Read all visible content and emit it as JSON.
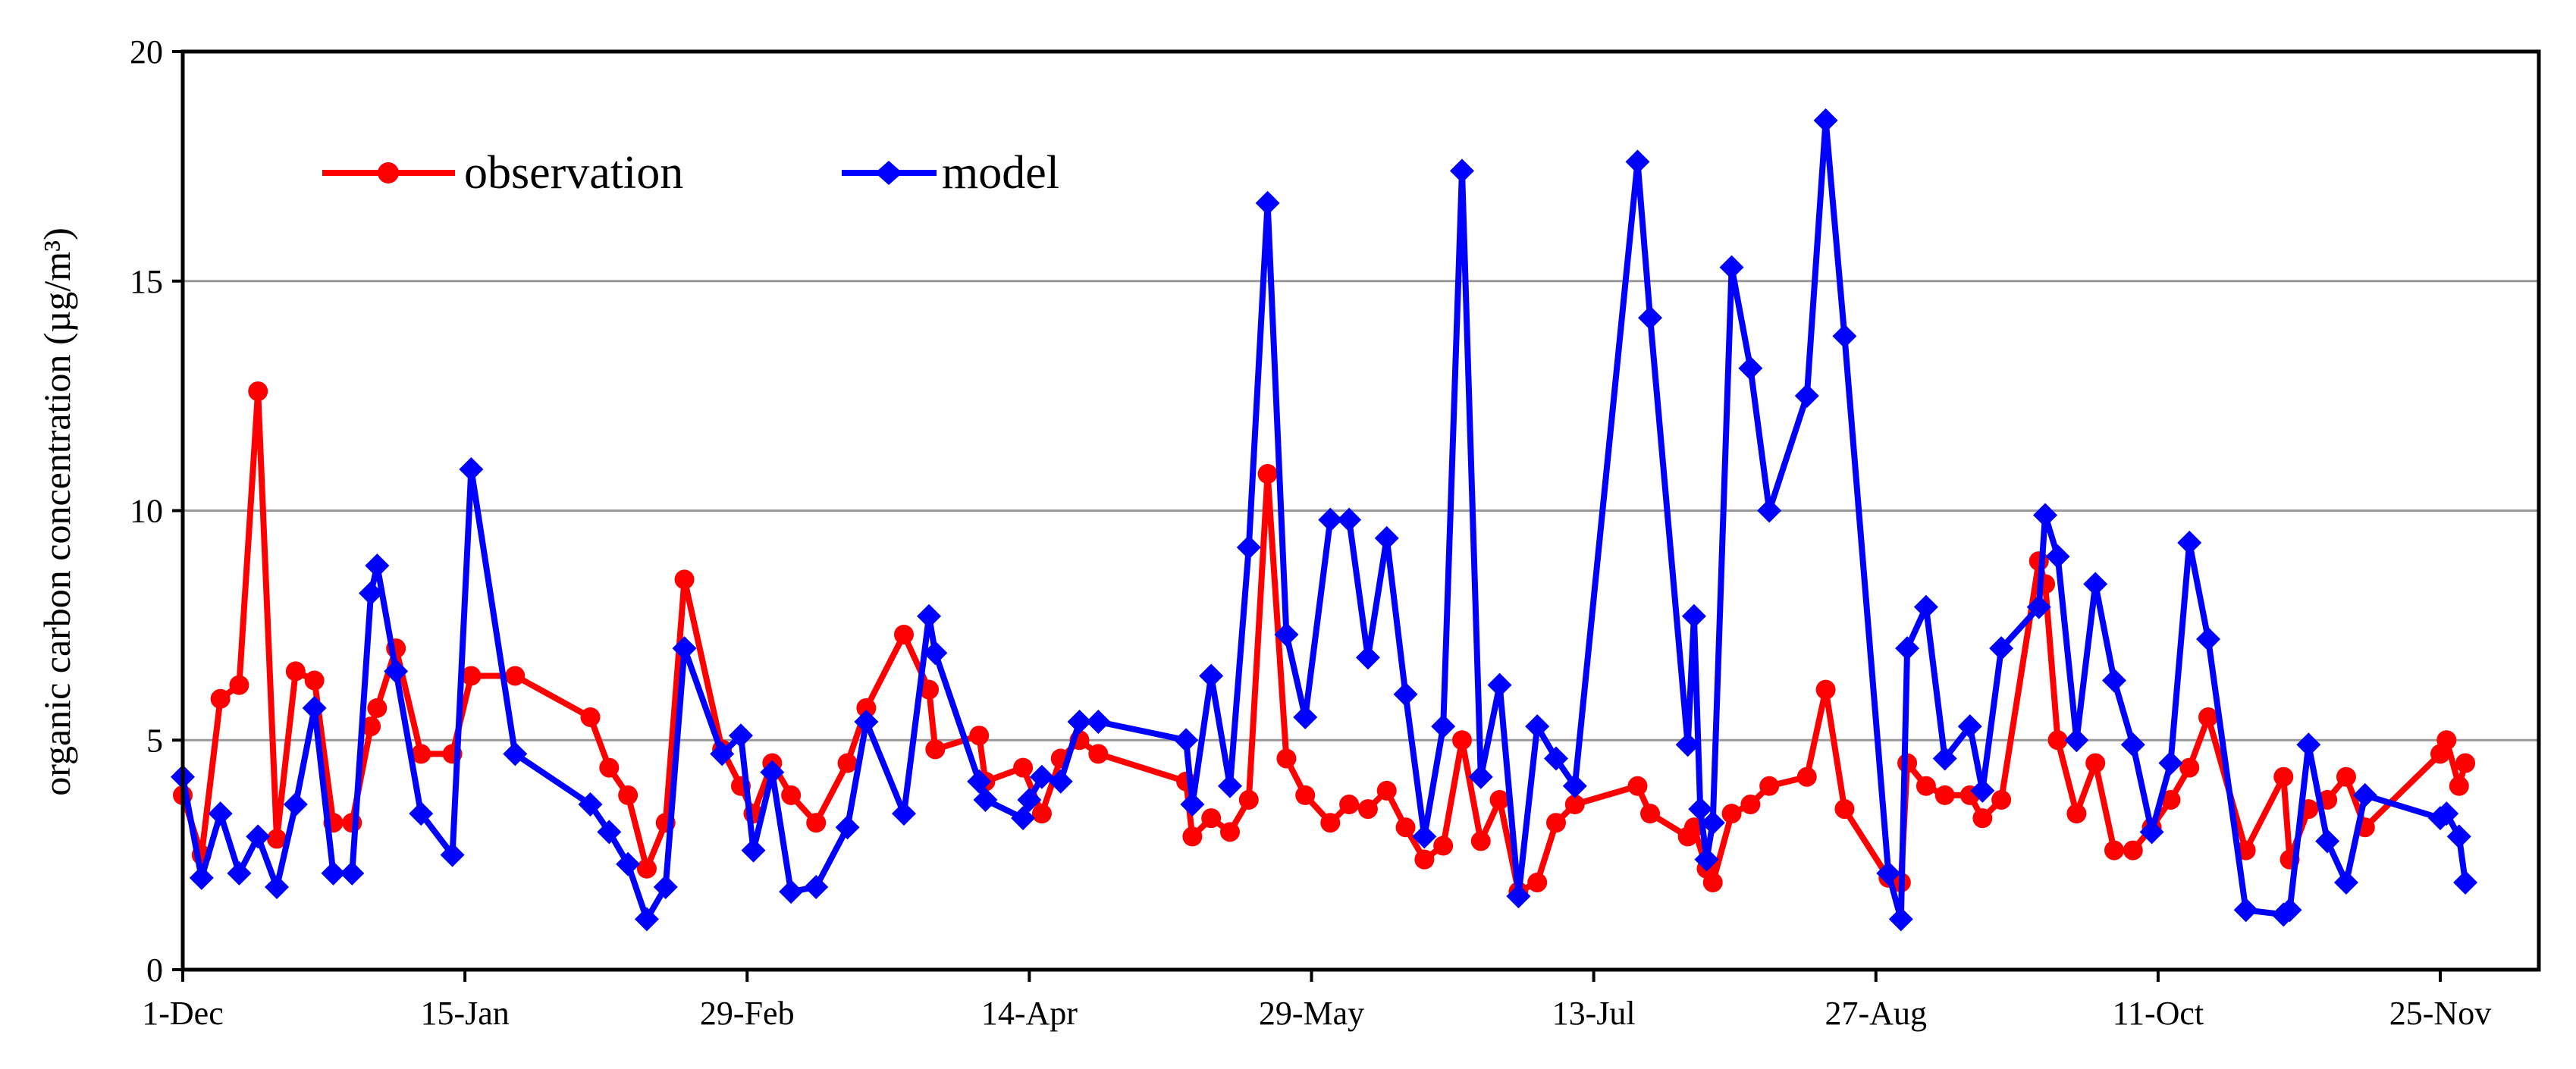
{
  "chart_data": {
    "type": "line",
    "title": "",
    "xlabel": "",
    "ylabel": "organic carbon concentration (µg/m³)",
    "ylim": [
      0,
      20
    ],
    "yticks": [
      0,
      5,
      10,
      15,
      20
    ],
    "xticks": [
      "1-Dec",
      "15-Jan",
      "29-Feb",
      "14-Apr",
      "29-May",
      "13-Jul",
      "27-Aug",
      "11-Oct",
      "25-Nov"
    ],
    "grid": "horizontal",
    "legend": "top-left",
    "series": [
      {
        "name": "observation",
        "color": "#ff0000",
        "marker": "circle",
        "points": [
          [
            "1-Dec",
            3.8
          ],
          [
            "4-Dec",
            2.5
          ],
          [
            "7-Dec",
            5.9
          ],
          [
            "10-Dec",
            6.2
          ],
          [
            "13-Dec",
            12.6
          ],
          [
            "16-Dec",
            2.85
          ],
          [
            "19-Dec",
            6.5
          ],
          [
            "22-Dec",
            6.3
          ],
          [
            "25-Dec",
            3.2
          ],
          [
            "28-Dec",
            3.2
          ],
          [
            "31-Dec",
            5.3
          ],
          [
            "1-Jan",
            5.7
          ],
          [
            "4-Jan",
            7.0
          ],
          [
            "8-Jan",
            4.7
          ],
          [
            "13-Jan",
            4.7
          ],
          [
            "16-Jan",
            6.4
          ],
          [
            "23-Jan",
            6.4
          ],
          [
            "4-Feb",
            5.5
          ],
          [
            "7-Feb",
            4.4
          ],
          [
            "10-Feb",
            3.8
          ],
          [
            "13-Feb",
            2.2
          ],
          [
            "16-Feb",
            3.2
          ],
          [
            "19-Feb",
            8.5
          ],
          [
            "25-Feb",
            4.8
          ],
          [
            "28-Feb",
            4.0
          ],
          [
            "1-Mar",
            3.4
          ],
          [
            "4-Mar",
            4.5
          ],
          [
            "7-Mar",
            3.8
          ],
          [
            "11-Mar",
            3.2
          ],
          [
            "16-Mar",
            4.5
          ],
          [
            "19-Mar",
            5.7
          ],
          [
            "25-Mar",
            7.3
          ],
          [
            "29-Mar",
            6.1
          ],
          [
            "30-Mar",
            4.8
          ],
          [
            "6-Apr",
            5.1
          ],
          [
            "7-Apr",
            4.1
          ],
          [
            "13-Apr",
            4.4
          ],
          [
            "16-Apr",
            3.4
          ],
          [
            "19-Apr",
            4.6
          ],
          [
            "22-Apr",
            5.0
          ],
          [
            "25-Apr",
            4.7
          ],
          [
            "9-May",
            4.1
          ],
          [
            "10-May",
            2.9
          ],
          [
            "13-May",
            3.3
          ],
          [
            "16-May",
            3.0
          ],
          [
            "19-May",
            3.7
          ],
          [
            "22-May",
            10.8
          ],
          [
            "25-May",
            4.6
          ],
          [
            "28-May",
            3.8
          ],
          [
            "1-Jun",
            3.2
          ],
          [
            "4-Jun",
            3.6
          ],
          [
            "7-Jun",
            3.5
          ],
          [
            "10-Jun",
            3.9
          ],
          [
            "13-Jun",
            3.1
          ],
          [
            "16-Jun",
            2.4
          ],
          [
            "19-Jun",
            2.7
          ],
          [
            "22-Jun",
            5.0
          ],
          [
            "25-Jun",
            2.8
          ],
          [
            "28-Jun",
            3.7
          ],
          [
            "1-Jul",
            1.7
          ],
          [
            "4-Jul",
            1.9
          ],
          [
            "7-Jul",
            3.2
          ],
          [
            "10-Jul",
            3.6
          ],
          [
            "20-Jul",
            4.0
          ],
          [
            "22-Jul",
            3.4
          ],
          [
            "28-Jul",
            2.9
          ],
          [
            "29-Jul",
            3.1
          ],
          [
            "31-Jul",
            2.2
          ],
          [
            "1-Aug",
            1.9
          ],
          [
            "4-Aug",
            3.4
          ],
          [
            "7-Aug",
            3.6
          ],
          [
            "10-Aug",
            4.0
          ],
          [
            "16-Aug",
            4.2
          ],
          [
            "19-Aug",
            6.1
          ],
          [
            "22-Aug",
            3.5
          ],
          [
            "29-Aug",
            2.0
          ],
          [
            "31-Aug",
            1.9
          ],
          [
            "1-Sep",
            4.5
          ],
          [
            "4-Sep",
            4.0
          ],
          [
            "7-Sep",
            3.8
          ],
          [
            "11-Sep",
            3.8
          ],
          [
            "13-Sep",
            3.3
          ],
          [
            "16-Sep",
            3.7
          ],
          [
            "22-Sep",
            8.9
          ],
          [
            "23-Sep",
            8.4
          ],
          [
            "25-Sep",
            5.0
          ],
          [
            "28-Sep",
            3.4
          ],
          [
            "1-Oct",
            4.5
          ],
          [
            "4-Oct",
            2.6
          ],
          [
            "7-Oct",
            2.6
          ],
          [
            "10-Oct",
            3.1
          ],
          [
            "13-Oct",
            3.7
          ],
          [
            "16-Oct",
            4.4
          ],
          [
            "19-Oct",
            5.5
          ],
          [
            "25-Oct",
            2.6
          ],
          [
            "31-Oct",
            4.2
          ],
          [
            "1-Nov",
            2.4
          ],
          [
            "4-Nov",
            3.5
          ],
          [
            "7-Nov",
            3.7
          ],
          [
            "10-Nov",
            4.2
          ],
          [
            "13-Nov",
            3.1
          ],
          [
            "25-Nov",
            4.7
          ],
          [
            "26-Nov",
            5.0
          ],
          [
            "28-Nov",
            4.0
          ],
          [
            "29-Nov",
            4.5
          ]
        ]
      },
      {
        "name": "model",
        "color": "#0000ff",
        "marker": "diamond",
        "points": [
          [
            "1-Dec",
            4.2
          ],
          [
            "4-Dec",
            2.0
          ],
          [
            "7-Dec",
            3.4
          ],
          [
            "10-Dec",
            2.1
          ],
          [
            "13-Dec",
            2.9
          ],
          [
            "16-Dec",
            1.8
          ],
          [
            "19-Dec",
            3.6
          ],
          [
            "22-Dec",
            5.7
          ],
          [
            "25-Dec",
            2.1
          ],
          [
            "28-Dec",
            2.1
          ],
          [
            "31-Dec",
            8.2
          ],
          [
            "1-Jan",
            8.8
          ],
          [
            "4-Jan",
            6.5
          ],
          [
            "8-Jan",
            3.4
          ],
          [
            "13-Jan",
            2.5
          ],
          [
            "16-Jan",
            10.9
          ],
          [
            "23-Jan",
            4.7
          ],
          [
            "4-Feb",
            3.6
          ],
          [
            "7-Feb",
            3.0
          ],
          [
            "10-Feb",
            2.3
          ],
          [
            "13-Feb",
            1.1
          ],
          [
            "16-Feb",
            1.8
          ],
          [
            "19-Feb",
            7.0
          ],
          [
            "25-Feb",
            4.7
          ],
          [
            "28-Feb",
            5.1
          ],
          [
            "1-Mar",
            2.6
          ],
          [
            "4-Mar",
            4.3
          ],
          [
            "7-Mar",
            1.7
          ],
          [
            "11-Mar",
            1.8
          ],
          [
            "16-Mar",
            3.1
          ],
          [
            "19-Mar",
            5.4
          ],
          [
            "25-Mar",
            3.4
          ],
          [
            "29-Mar",
            7.7
          ],
          [
            "30-Mar",
            6.9
          ],
          [
            "6-Apr",
            4.1
          ],
          [
            "7-Apr",
            3.7
          ],
          [
            "13-Apr",
            3.3
          ],
          [
            "14-Apr",
            3.7
          ],
          [
            "16-Apr",
            4.2
          ],
          [
            "19-Apr",
            4.1
          ],
          [
            "22-Apr",
            5.4
          ],
          [
            "25-Apr",
            5.4
          ],
          [
            "9-May",
            5.0
          ],
          [
            "10-May",
            3.6
          ],
          [
            "13-May",
            6.4
          ],
          [
            "16-May",
            4.0
          ],
          [
            "19-May",
            9.2
          ],
          [
            "22-May",
            16.7
          ],
          [
            "25-May",
            7.3
          ],
          [
            "28-May",
            5.5
          ],
          [
            "1-Jun",
            9.8
          ],
          [
            "4-Jun",
            9.8
          ],
          [
            "7-Jun",
            6.8
          ],
          [
            "10-Jun",
            9.4
          ],
          [
            "13-Jun",
            6.0
          ],
          [
            "16-Jun",
            2.9
          ],
          [
            "19-Jun",
            5.3
          ],
          [
            "22-Jun",
            17.4
          ],
          [
            "25-Jun",
            4.2
          ],
          [
            "28-Jun",
            6.2
          ],
          [
            "1-Jul",
            1.6
          ],
          [
            "4-Jul",
            5.3
          ],
          [
            "7-Jul",
            4.6
          ],
          [
            "10-Jul",
            4.0
          ],
          [
            "20-Jul",
            17.6
          ],
          [
            "22-Jul",
            14.2
          ],
          [
            "28-Jul",
            4.9
          ],
          [
            "29-Jul",
            7.7
          ],
          [
            "30-Jul",
            3.5
          ],
          [
            "31-Jul",
            2.4
          ],
          [
            "1-Aug",
            3.2
          ],
          [
            "4-Aug",
            15.3
          ],
          [
            "7-Aug",
            13.1
          ],
          [
            "10-Aug",
            10.0
          ],
          [
            "16-Aug",
            12.5
          ],
          [
            "19-Aug",
            18.5
          ],
          [
            "22-Aug",
            13.8
          ],
          [
            "29-Aug",
            2.1
          ],
          [
            "31-Aug",
            1.1
          ],
          [
            "1-Sep",
            7.0
          ],
          [
            "4-Sep",
            7.9
          ],
          [
            "7-Sep",
            4.6
          ],
          [
            "11-Sep",
            5.3
          ],
          [
            "13-Sep",
            3.9
          ],
          [
            "16-Sep",
            7.0
          ],
          [
            "22-Sep",
            7.9
          ],
          [
            "23-Sep",
            9.9
          ],
          [
            "25-Sep",
            9.0
          ],
          [
            "28-Sep",
            5.0
          ],
          [
            "1-Oct",
            8.4
          ],
          [
            "4-Oct",
            6.3
          ],
          [
            "7-Oct",
            4.9
          ],
          [
            "10-Oct",
            3.0
          ],
          [
            "13-Oct",
            4.5
          ],
          [
            "16-Oct",
            9.3
          ],
          [
            "19-Oct",
            7.2
          ],
          [
            "25-Oct",
            1.3
          ],
          [
            "31-Oct",
            1.2
          ],
          [
            "1-Nov",
            1.3
          ],
          [
            "4-Nov",
            4.9
          ],
          [
            "7-Nov",
            2.8
          ],
          [
            "10-Nov",
            1.9
          ],
          [
            "13-Nov",
            3.8
          ],
          [
            "25-Nov",
            3.3
          ],
          [
            "26-Nov",
            3.4
          ],
          [
            "28-Nov",
            2.9
          ],
          [
            "29-Nov",
            1.9
          ]
        ]
      }
    ]
  }
}
